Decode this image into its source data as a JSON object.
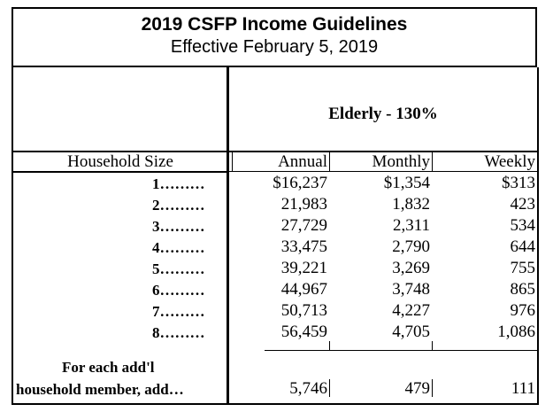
{
  "header": {
    "title": "2019 CSFP Income Guidelines",
    "effective": "Effective February 5, 2019"
  },
  "table": {
    "group_label": "Elderly - 130%",
    "household_size_label": "Household Size",
    "columns": [
      "Annual",
      "Monthly",
      "Weekly"
    ],
    "rows": [
      {
        "size": "1………",
        "annual": "$16,237",
        "monthly": "$1,354",
        "weekly": "$313"
      },
      {
        "size": "2………",
        "annual": "21,983",
        "monthly": "1,832",
        "weekly": "423"
      },
      {
        "size": "3………",
        "annual": "27,729",
        "monthly": "2,311",
        "weekly": "534"
      },
      {
        "size": "4………",
        "annual": "33,475",
        "monthly": "2,790",
        "weekly": "644"
      },
      {
        "size": "5………",
        "annual": "39,221",
        "monthly": "3,269",
        "weekly": "755"
      },
      {
        "size": "6………",
        "annual": "44,967",
        "monthly": "3,748",
        "weekly": "865"
      },
      {
        "size": "7………",
        "annual": "50,713",
        "monthly": "4,227",
        "weekly": "976"
      },
      {
        "size": "8………",
        "annual": "56,459",
        "monthly": "4,705",
        "weekly": "1,086"
      }
    ],
    "additional": {
      "label_line1": "For each add'l",
      "label_line2": "household member, add…",
      "annual": "5,746",
      "monthly": "479",
      "weekly": "111"
    }
  }
}
